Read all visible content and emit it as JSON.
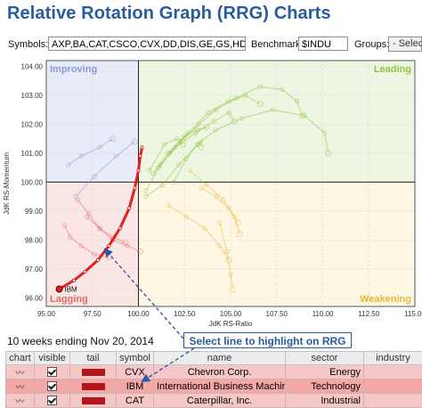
{
  "title": "Relative Rotation Graph (RRG) Charts",
  "controls": {
    "symbols_label": "Symbols:",
    "symbols_value": "AXP,BA,CAT,CSCO,CVX,DD,DIS,GE,GS,HD,IBM,IN",
    "benchmark_label": "Benchmark:",
    "benchmark_value": "$INDU",
    "groups_label": "Groups:",
    "groups_value": "- Select -"
  },
  "chart_data": {
    "type": "scatter",
    "xlabel": "JdK RS-Ratio",
    "ylabel": "JdK RS-Momentum",
    "xlim": [
      95.0,
      115.0
    ],
    "ylim": [
      95.7,
      104.2
    ],
    "x_ticks": [
      "95.00",
      "97.50",
      "100.00",
      "102.50",
      "105.00",
      "107.50",
      "110.00",
      "112.50",
      "115.00"
    ],
    "y_ticks": [
      "96.00",
      "97.00",
      "98.00",
      "99.00",
      "100.00",
      "101.00",
      "102.00",
      "103.00",
      "104.00"
    ],
    "quadrants": [
      {
        "name": "Improving",
        "position": "top-left",
        "color": "#8a98d8"
      },
      {
        "name": "Leading",
        "position": "top-right",
        "color": "#8cc63e"
      },
      {
        "name": "Lagging",
        "position": "bottom-left",
        "color": "#e06c6c"
      },
      {
        "name": "Weakening",
        "position": "bottom-right",
        "color": "#e8b83a"
      }
    ],
    "highlight_label": "IBM",
    "series": [
      {
        "name": "IBM",
        "color": "#e02020",
        "highlighted": true,
        "x": [
          95.7,
          96.5,
          97.1,
          97.8,
          98.4,
          99.0,
          99.5,
          99.8,
          100.0,
          100.1,
          100.2
        ],
        "y": [
          96.3,
          96.6,
          96.9,
          97.3,
          97.8,
          98.4,
          99.1,
          99.8,
          100.4,
          100.9,
          101.2
        ]
      },
      {
        "color": "#8cc63e",
        "x": [
          100.4,
          101.2,
          102.3,
          103.3,
          104.2,
          105.3,
          106.6,
          107.8,
          108.6,
          108.9
        ],
        "y": [
          99.7,
          100.6,
          101.4,
          102.0,
          102.5,
          102.9,
          103.3,
          103.2,
          102.8,
          102.3
        ]
      },
      {
        "color": "#8cc63e",
        "x": [
          101.1,
          102.0,
          103.1,
          104.1,
          104.9,
          105.2
        ],
        "y": [
          100.5,
          101.2,
          101.7,
          102.1,
          102.4,
          102.1
        ]
      },
      {
        "color": "#8cc63e",
        "x": [
          101.7,
          102.7,
          103.8,
          104.9,
          105.8,
          106.6
        ],
        "y": [
          101.0,
          101.7,
          102.4,
          102.8,
          103.0,
          102.7
        ]
      },
      {
        "color": "#8cc63e",
        "x": [
          101.9,
          102.6,
          103.2,
          103.4,
          103.4
        ],
        "y": [
          100.0,
          100.8,
          101.3,
          101.4,
          101.2
        ]
      },
      {
        "color": "#8cc63e",
        "x": [
          100.8,
          101.6,
          102.5,
          103.2,
          103.7
        ],
        "y": [
          100.3,
          101.0,
          101.6,
          101.8,
          101.9
        ]
      },
      {
        "color": "#8cc63e",
        "x": [
          100.4,
          101.3,
          102.2,
          103.2,
          104.2,
          105.6,
          107.3,
          109.0,
          110.1,
          110.3
        ],
        "y": [
          99.5,
          99.9,
          100.6,
          101.3,
          101.8,
          102.2,
          102.5,
          102.3,
          101.7,
          101.0
        ]
      },
      {
        "color": "#8cc63e",
        "x": [
          100.6,
          101.4,
          102.1,
          102.4
        ],
        "y": [
          100.4,
          101.3,
          101.5,
          101.3
        ]
      },
      {
        "color": "#e8b83a",
        "x": [
          101.6,
          102.6,
          103.6,
          104.4,
          104.9
        ],
        "y": [
          99.2,
          98.8,
          98.4,
          97.8,
          97.3
        ]
      },
      {
        "color": "#e8b83a",
        "x": [
          102.8,
          103.7,
          104.6,
          105.2,
          105.5
        ],
        "y": [
          100.4,
          99.9,
          99.4,
          98.8,
          98.2
        ]
      },
      {
        "color": "#e8b83a",
        "x": [
          104.4,
          104.8,
          105.0,
          105.1
        ],
        "y": [
          98.6,
          97.6,
          96.8,
          96.3
        ]
      },
      {
        "color": "#e8b83a",
        "x": [
          103.4,
          104.2,
          104.9,
          105.4
        ],
        "y": [
          99.8,
          99.5,
          99.1,
          98.6
        ]
      },
      {
        "color": "#8a98d8",
        "x": [
          96.2,
          96.9,
          97.9,
          98.6
        ],
        "y": [
          100.6,
          100.9,
          101.2,
          101.5
        ]
      },
      {
        "color": "#8a98d8",
        "x": [
          96.6,
          97.6,
          98.8,
          99.8
        ],
        "y": [
          99.5,
          100.2,
          100.9,
          101.4
        ]
      },
      {
        "color": "#e06c6c",
        "x": [
          96.7,
          97.3,
          97.9,
          98.6,
          99.4,
          100.1
        ],
        "y": [
          99.4,
          98.9,
          98.4,
          98.0,
          97.8,
          97.6
        ]
      },
      {
        "color": "#e06c6c",
        "x": [
          96.0,
          96.3,
          96.9,
          97.6,
          98.4
        ],
        "y": [
          98.5,
          98.1,
          97.8,
          97.5,
          97.4
        ]
      },
      {
        "color": "#e06c6c",
        "x": [
          97.2,
          97.9,
          98.6,
          99.3
        ],
        "y": [
          98.8,
          98.4,
          98.1,
          97.9
        ]
      }
    ]
  },
  "annotation": "Select line to highlight on RRG",
  "table": {
    "caption": "10 weeks ending Nov 20, 2014",
    "headers": [
      "chart",
      "visible",
      "tail",
      "symbol",
      "name",
      "sector",
      "industry"
    ],
    "rows": [
      {
        "symbol": "CVX",
        "name": "Chevron Corp.",
        "sector": "Energy",
        "tail_color": "#b3161a",
        "highlighted": false
      },
      {
        "symbol": "IBM",
        "name": "International Business Machines",
        "sector": "Technology",
        "tail_color": "#b3161a",
        "highlighted": true
      },
      {
        "symbol": "CAT",
        "name": "Caterpillar, Inc.",
        "sector": "Industrial",
        "tail_color": "#b3161a",
        "highlighted": false
      }
    ]
  }
}
